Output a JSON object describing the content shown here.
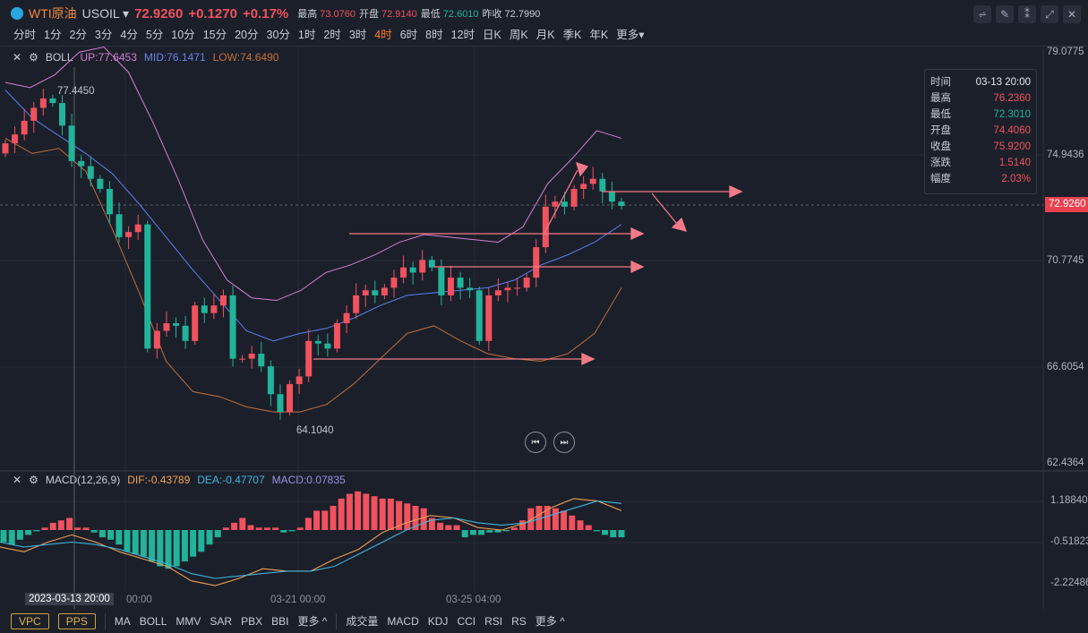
{
  "header": {
    "name": "WTI原油",
    "code": "USOIL",
    "price": "72.9260",
    "change": "+0.1270",
    "pct": "+0.17%",
    "stats": [
      {
        "label": "最高",
        "value": "73.0760",
        "color": "red"
      },
      {
        "label": "开盘",
        "value": "72.9140",
        "color": "red"
      },
      {
        "label": "最低",
        "value": "72.6010",
        "color": "green"
      },
      {
        "label": "昨收",
        "value": "72.7990",
        "color": "plain"
      }
    ]
  },
  "periods": [
    "分时",
    "1分",
    "2分",
    "3分",
    "4分",
    "5分",
    "10分",
    "15分",
    "20分",
    "30分",
    "1时",
    "2时",
    "3时",
    "4时",
    "6时",
    "8时",
    "12时",
    "日K",
    "周K",
    "月K",
    "季K",
    "年K",
    "更多"
  ],
  "active_period": "4时",
  "boll": {
    "name": "BOLL",
    "up": "UP:77.6453",
    "mid": "MID:76.1471",
    "low": "LOW:74.6490"
  },
  "macd": {
    "name": "MACD(12,26,9)",
    "dif": "DIF:-0.43789",
    "dea": "DEA:-0.47707",
    "macd": "MACD:0.07835"
  },
  "price_axis": [
    "79.0775",
    "74.9436",
    "70.7745",
    "66.6054",
    "62.4364"
  ],
  "macd_axis": [
    "1.18840",
    "-0.51823",
    "-2.22486"
  ],
  "current_tag": "72.9260",
  "annotations": {
    "high": "77.4450",
    "low": "64.1040"
  },
  "tooltip": {
    "rows": [
      [
        "时间",
        "03-13 20:00"
      ],
      [
        "最高",
        "76.2360"
      ],
      [
        "最低",
        "72.3010"
      ],
      [
        "开盘",
        "74.4060"
      ],
      [
        "收盘",
        "75.9200"
      ],
      [
        "涨跌",
        "1.5140"
      ],
      [
        "幅度",
        "2.03%"
      ]
    ]
  },
  "time_axis": {
    "crosshair": "2023-03-13 20:00",
    "labels": [
      "00:00",
      "03-21 00:00",
      "03-25 04:00"
    ]
  },
  "bottom": {
    "boxed": [
      "VPC",
      "PPS"
    ],
    "main": [
      "MA",
      "BOLL",
      "MMV",
      "SAR",
      "PBX",
      "BBI",
      "更多 ^"
    ],
    "sub": [
      "成交量",
      "MACD",
      "KDJ",
      "CCI",
      "RSI",
      "RS",
      "更多 ^"
    ]
  },
  "colors": {
    "up": "#f0525e",
    "down": "#22b39a",
    "boll_up": "#d57fd0",
    "boll_mid": "#5b7ff0",
    "boll_low": "#c0703a",
    "dif": "#f0a050",
    "dea": "#3fb4dc"
  },
  "chart_data": {
    "type": "candlestick",
    "ylim": [
      62.0,
      79.3
    ],
    "closes": [
      75.4,
      75.75,
      76.29,
      76.8,
      77.17,
      76.99,
      76.1,
      74.7,
      74.5,
      74.0,
      73.6,
      72.6,
      71.7,
      71.9,
      72.2,
      67.3,
      68.0,
      68.3,
      68.2,
      67.6,
      69.0,
      68.7,
      69.0,
      69.4,
      66.9,
      66.9,
      67.1,
      66.6,
      65.5,
      64.8,
      65.9,
      66.2,
      67.6,
      67.5,
      67.3,
      68.3,
      68.7,
      69.4,
      69.6,
      69.4,
      69.7,
      70.1,
      70.5,
      70.3,
      70.8,
      70.5,
      69.4,
      70.1,
      69.7,
      69.6,
      67.6,
      69.4,
      69.6,
      69.7,
      69.7,
      70.1,
      71.3,
      72.9,
      73.1,
      72.9,
      73.6,
      73.8,
      74.0,
      73.5,
      73.1,
      72.93
    ],
    "boll_up": [
      77.8,
      77.6,
      78.1,
      79.0,
      79.2,
      78.2,
      76.2,
      74.0,
      71.6,
      70.0,
      69.3,
      69.2,
      69.6,
      70.3,
      70.6,
      71.0,
      71.5,
      71.8,
      71.7,
      71.6,
      71.5,
      72.1,
      73.8,
      74.8,
      75.9,
      75.6
    ],
    "boll_mid": [
      77.5,
      76.4,
      75.7,
      75.0,
      74.2,
      73.0,
      71.7,
      70.4,
      69.2,
      68.0,
      67.6,
      67.9,
      68.1,
      68.5,
      69.0,
      69.4,
      69.5,
      69.6,
      69.7,
      70.0,
      70.6,
      71.0,
      71.5,
      72.2
    ],
    "boll_low": [
      75.6,
      75.0,
      75.2,
      74.3,
      72.0,
      69.5,
      66.8,
      65.6,
      65.4,
      65.0,
      64.8,
      64.8,
      65.1,
      65.9,
      66.9,
      67.9,
      68.2,
      67.6,
      67.1,
      66.9,
      66.8,
      67.1,
      67.9,
      69.7
    ],
    "macd_ylim": [
      -2.6,
      1.6
    ],
    "macd_hist": [
      -0.5,
      -0.6,
      -0.4,
      -0.2,
      -0.05,
      0.1,
      0.3,
      0.4,
      0.5,
      0.1,
      0.1,
      -0.1,
      -0.3,
      -0.4,
      -0.6,
      -0.9,
      -1.0,
      -1.1,
      -1.3,
      -1.5,
      -1.6,
      -1.5,
      -1.3,
      -1.1,
      -0.9,
      -0.6,
      -0.3,
      0.1,
      0.3,
      0.5,
      0.2,
      0.1,
      0.1,
      0.1,
      -0.1,
      -0.05,
      0.1,
      0.5,
      0.8,
      0.8,
      1.0,
      1.3,
      1.5,
      1.6,
      1.5,
      1.4,
      1.3,
      1.3,
      1.2,
      1.1,
      1.0,
      0.9,
      0.5,
      0.3,
      0.2,
      0.2,
      -0.3,
      -0.2,
      -0.2,
      -0.1,
      -0.1,
      -0.05,
      0.1,
      0.4,
      0.9,
      1.0,
      1.0,
      0.9,
      0.8,
      0.6,
      0.4,
      0.2,
      -0.05,
      -0.2,
      -0.3,
      -0.3
    ],
    "dif": [
      -0.7,
      -0.9,
      -0.5,
      -0.2,
      -0.5,
      -0.9,
      -1.2,
      -1.5,
      -2.1,
      -2.3,
      -2.0,
      -1.6,
      -1.7,
      -1.7,
      -1.2,
      -0.8,
      -0.1,
      0.3,
      0.6,
      0.5,
      0.1,
      0.0,
      0.3,
      0.9,
      1.3,
      1.2,
      0.8
    ],
    "dea": [
      -0.5,
      -0.7,
      -0.6,
      -0.5,
      -0.6,
      -0.8,
      -1.1,
      -1.4,
      -1.8,
      -2.0,
      -1.9,
      -1.8,
      -1.7,
      -1.7,
      -1.5,
      -1.0,
      -0.5,
      0.0,
      0.4,
      0.5,
      0.3,
      0.2,
      0.3,
      0.6,
      0.9,
      1.2,
      1.1
    ]
  }
}
